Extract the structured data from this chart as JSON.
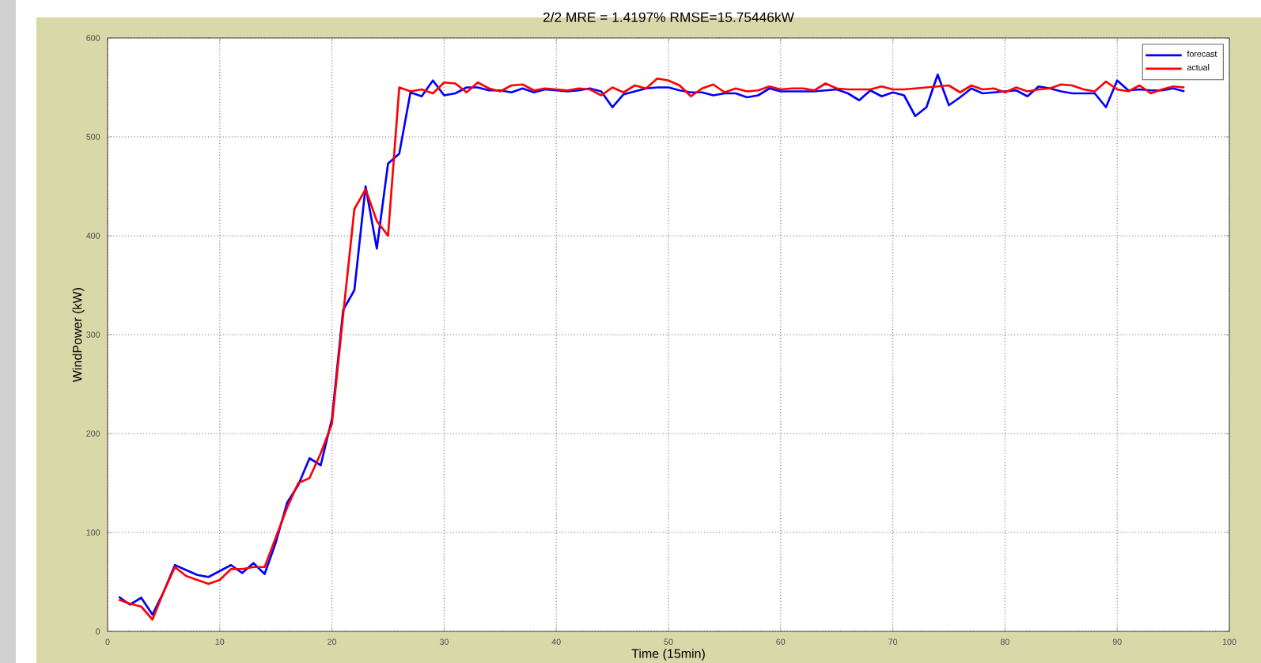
{
  "chart_data": {
    "type": "line",
    "title": "2/2 MRE = 1.4197% RMSE=15.75446kW",
    "xlabel": "Time (15min)",
    "ylabel": "WindPower (kW)",
    "x": [
      1,
      2,
      3,
      4,
      5,
      6,
      7,
      8,
      9,
      10,
      11,
      12,
      13,
      14,
      15,
      16,
      17,
      18,
      19,
      20,
      21,
      22,
      23,
      24,
      25,
      26,
      27,
      28,
      29,
      30,
      31,
      32,
      33,
      34,
      35,
      36,
      37,
      38,
      39,
      40,
      41,
      42,
      43,
      44,
      45,
      46,
      47,
      48,
      49,
      50,
      51,
      52,
      53,
      54,
      55,
      56,
      57,
      58,
      59,
      60,
      61,
      62,
      63,
      64,
      65,
      66,
      67,
      68,
      69,
      70,
      71,
      72,
      73,
      74,
      75,
      76,
      77,
      78,
      79,
      80,
      81,
      82,
      83,
      84,
      85,
      86,
      87,
      88,
      89,
      90,
      91,
      92,
      93,
      94,
      95,
      96
    ],
    "series": [
      {
        "name": "forecast",
        "color": "#0000ff",
        "values": [
          35,
          27,
          34,
          17,
          40,
          67,
          62,
          57,
          55,
          61,
          67,
          59,
          69,
          58,
          90,
          130,
          148,
          175,
          168,
          215,
          325,
          345,
          450,
          387,
          473,
          483,
          545,
          541,
          557,
          542,
          544,
          550,
          550,
          547,
          547,
          545,
          549,
          545,
          548,
          547,
          546,
          547,
          549,
          546,
          530,
          543,
          546,
          549,
          550,
          550,
          547,
          545,
          545,
          542,
          544,
          544,
          540,
          542,
          549,
          546,
          546,
          546,
          546,
          547,
          548,
          544,
          537,
          547,
          541,
          545,
          542,
          521,
          530,
          563,
          532,
          540,
          549,
          544,
          545,
          546,
          547,
          541,
          551,
          549,
          546,
          544,
          544,
          544,
          530,
          557,
          547,
          548,
          547,
          547,
          549,
          546
        ]
      },
      {
        "name": "actual",
        "color": "#ff0000",
        "values": [
          32,
          28,
          25,
          12,
          40,
          65,
          56,
          52,
          48,
          52,
          63,
          63,
          65,
          65,
          95,
          125,
          150,
          155,
          180,
          210,
          320,
          427,
          447,
          415,
          400,
          550,
          546,
          548,
          544,
          555,
          554,
          545,
          555,
          549,
          546,
          552,
          553,
          547,
          549,
          548,
          547,
          549,
          548,
          542,
          550,
          545,
          552,
          549,
          559,
          557,
          552,
          541,
          549,
          553,
          545,
          549,
          546,
          547,
          551,
          548,
          549,
          549,
          547,
          554,
          549,
          548,
          548,
          548,
          551,
          548,
          548,
          549,
          550,
          551,
          552,
          545,
          552,
          548,
          549,
          545,
          550,
          546,
          548,
          549,
          553,
          552,
          548,
          546,
          556,
          548,
          546,
          552,
          544,
          548,
          551,
          550
        ]
      }
    ],
    "xlim": [
      0,
      100
    ],
    "ylim": [
      0,
      600
    ],
    "xticks": [
      0,
      10,
      20,
      30,
      40,
      50,
      60,
      70,
      80,
      90,
      100
    ],
    "yticks": [
      0,
      100,
      200,
      300,
      400,
      500,
      600
    ],
    "grid": true,
    "legend": "top right",
    "marker": "none",
    "line_style": "solid"
  }
}
